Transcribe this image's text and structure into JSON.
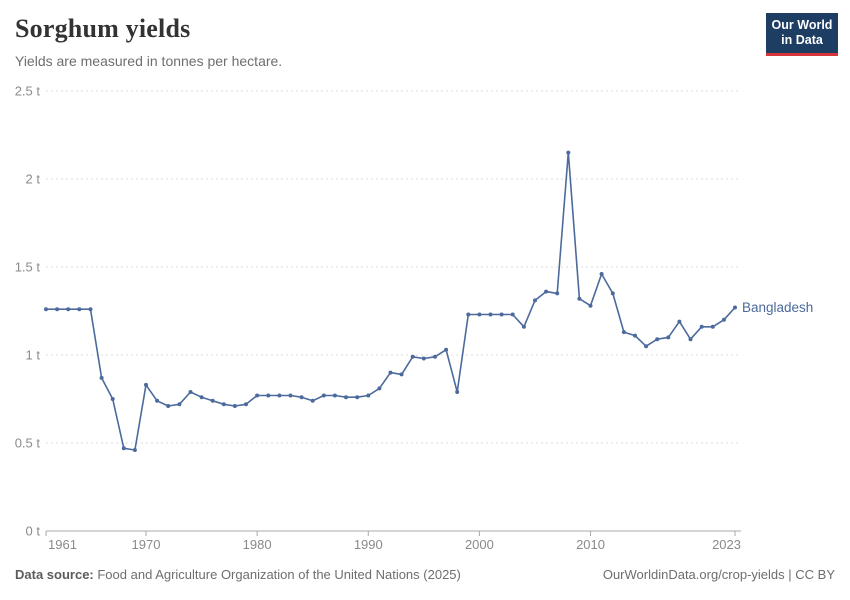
{
  "header": {
    "title": "Sorghum yields",
    "subtitle": "Yields are measured in tonnes per hectare."
  },
  "logo": {
    "line1": "Our World",
    "line2": "in Data"
  },
  "footer": {
    "source_label": "Data source:",
    "source_text": " Food and Agriculture Organization of the United Nations (2025)",
    "credit": "OurWorldinData.org/crop-yields | CC BY"
  },
  "colors": {
    "line": "#4c6a9c",
    "logo_bg": "#1d3d63",
    "logo_accent": "#d7343c",
    "grid": "#dddddd",
    "axis": "#a9a9a9",
    "tick_label": "#8a8a8a"
  },
  "chart_data": {
    "type": "line",
    "title": "Sorghum yields",
    "ylabel": "tonnes per hectare",
    "entity_label": "Bangladesh",
    "xlim": [
      1961,
      2023
    ],
    "ylim": [
      0,
      2.5
    ],
    "x_ticks": [
      1961,
      1970,
      1980,
      1990,
      2000,
      2010,
      2023
    ],
    "y_ticks": [
      0,
      0.5,
      1,
      1.5,
      2,
      2.5
    ],
    "y_tick_labels": [
      "0 t",
      "0.5 t",
      "1 t",
      "1.5 t",
      "2 t",
      "2.5 t"
    ],
    "grid": "horizontal-dashed",
    "legend_position": "end-of-line-label",
    "series": [
      {
        "name": "Bangladesh",
        "color": "#4c6a9c",
        "x": [
          1961,
          1962,
          1963,
          1964,
          1965,
          1966,
          1967,
          1968,
          1969,
          1970,
          1971,
          1972,
          1973,
          1974,
          1975,
          1976,
          1977,
          1978,
          1979,
          1980,
          1981,
          1982,
          1983,
          1984,
          1985,
          1986,
          1987,
          1988,
          1989,
          1990,
          1991,
          1992,
          1993,
          1994,
          1995,
          1996,
          1997,
          1998,
          1999,
          2000,
          2001,
          2002,
          2003,
          2004,
          2005,
          2006,
          2007,
          2008,
          2009,
          2010,
          2011,
          2012,
          2013,
          2014,
          2015,
          2016,
          2017,
          2018,
          2019,
          2020,
          2021,
          2022,
          2023
        ],
        "values": [
          1.26,
          1.26,
          1.26,
          1.26,
          1.26,
          0.87,
          0.75,
          0.47,
          0.46,
          0.83,
          0.74,
          0.71,
          0.72,
          0.79,
          0.76,
          0.74,
          0.72,
          0.71,
          0.72,
          0.77,
          0.77,
          0.77,
          0.77,
          0.76,
          0.74,
          0.77,
          0.77,
          0.76,
          0.76,
          0.77,
          0.81,
          0.9,
          0.89,
          0.99,
          0.98,
          0.99,
          1.03,
          0.79,
          1.23,
          1.23,
          1.23,
          1.23,
          1.23,
          1.16,
          1.31,
          1.36,
          1.35,
          2.15,
          1.32,
          1.28,
          1.46,
          1.35,
          1.13,
          1.11,
          1.05,
          1.09,
          1.1,
          1.19,
          1.09,
          1.16,
          1.16,
          1.2,
          1.27
        ]
      }
    ]
  }
}
